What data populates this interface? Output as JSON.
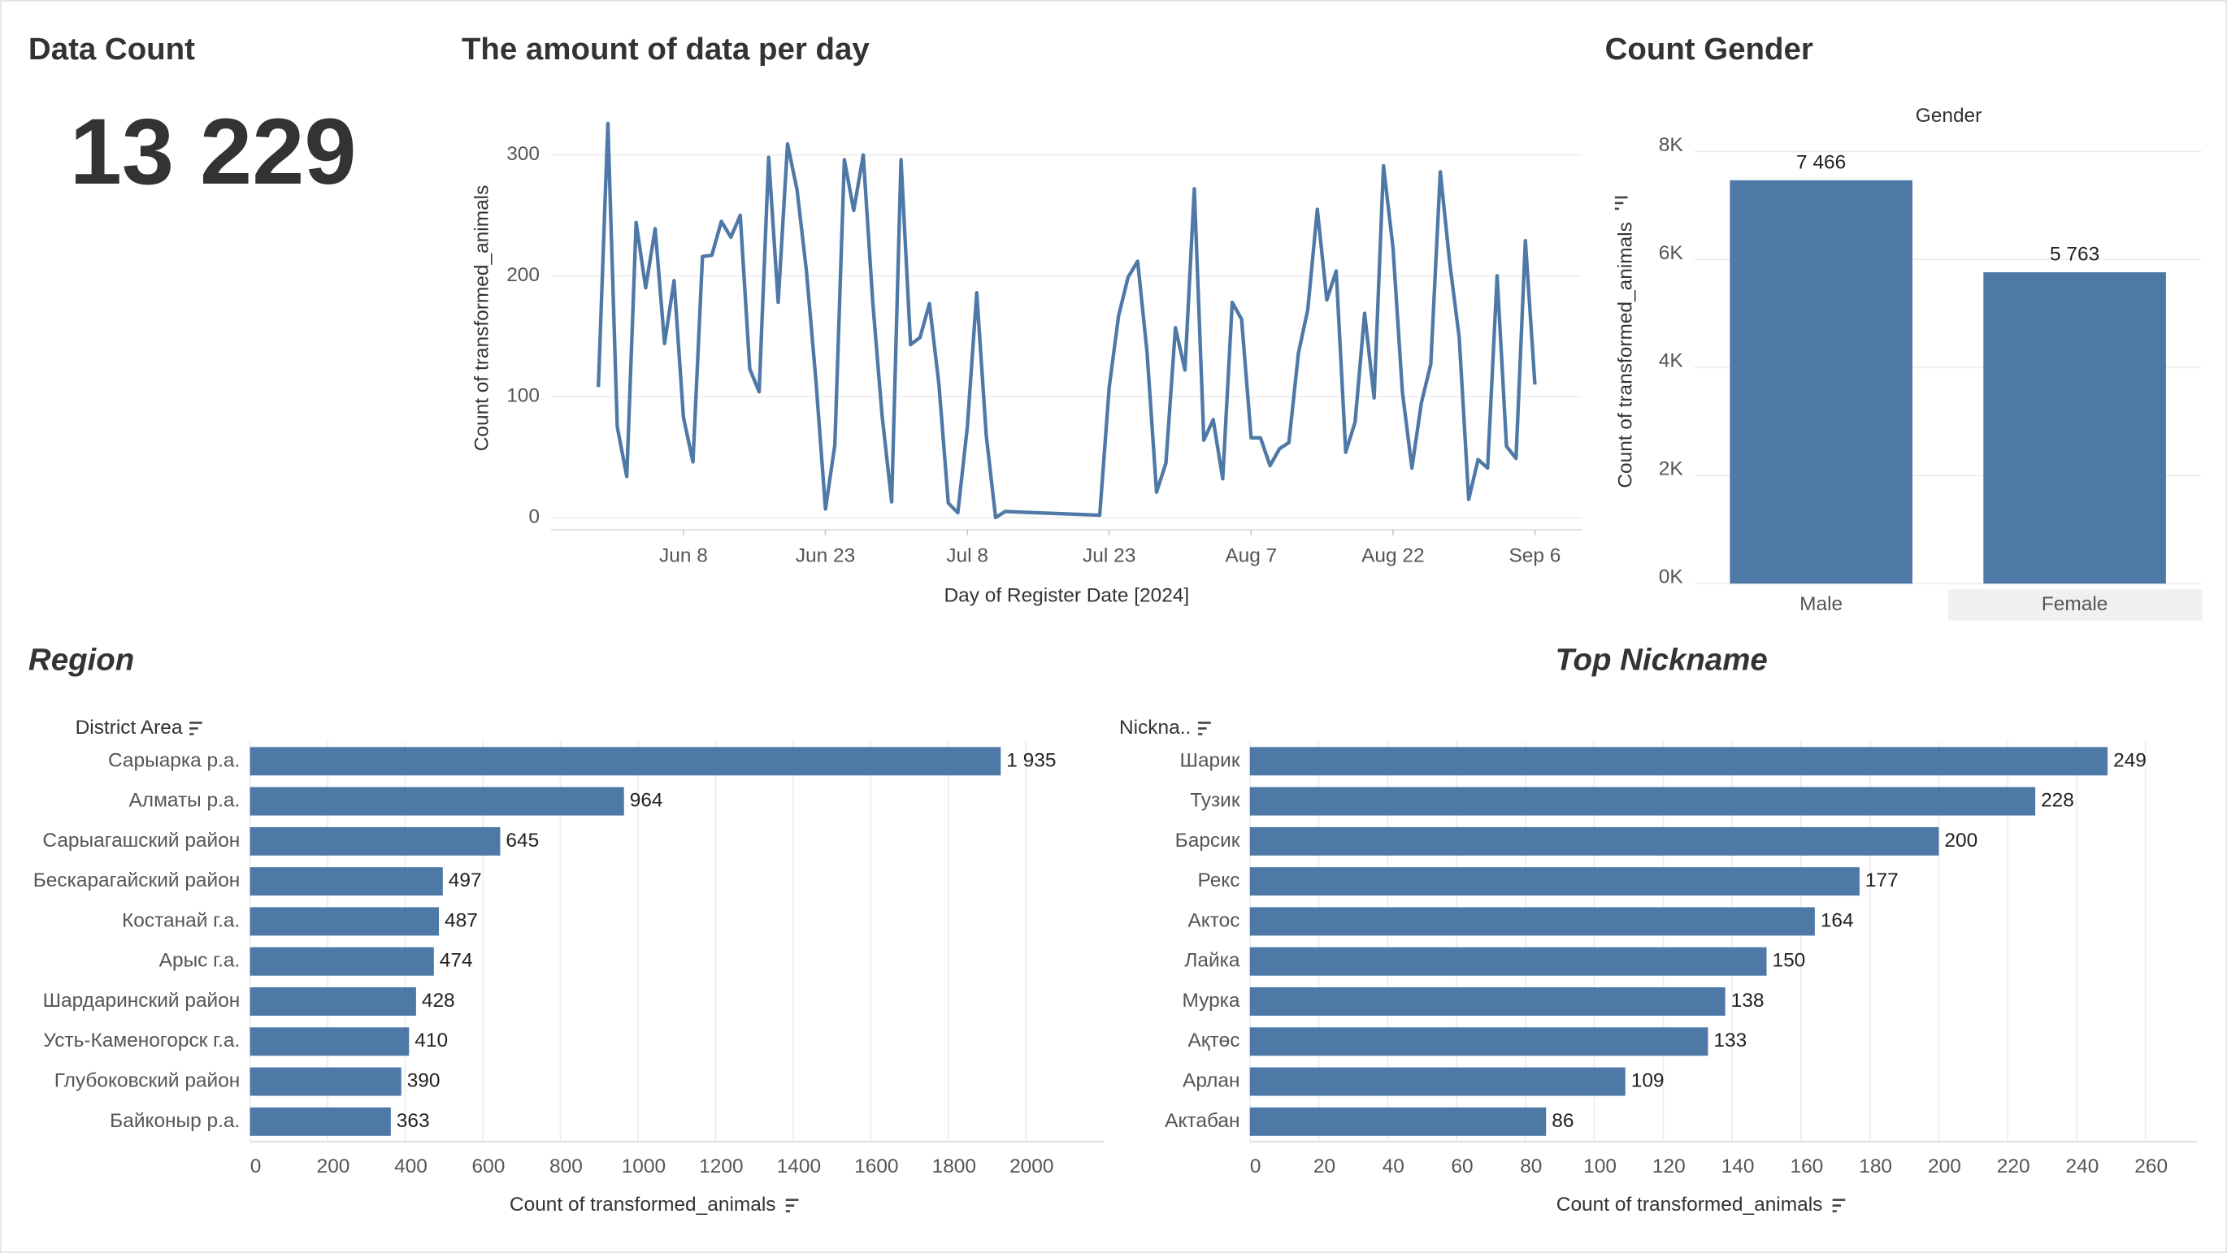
{
  "kpi": {
    "title": "Data Count",
    "value": "13 229"
  },
  "chart_data": [
    {
      "type": "line",
      "title": "The amount of data per day",
      "x_label": "Day of Register Date [2024]",
      "y_label": "Count of transformed_animals",
      "color": "#4e79a7",
      "x": [
        "2024-05-30",
        "2024-05-31",
        "2024-06-01",
        "2024-06-02",
        "2024-06-03",
        "2024-06-04",
        "2024-06-05",
        "2024-06-06",
        "2024-06-07",
        "2024-06-08",
        "2024-06-09",
        "2024-06-10",
        "2024-06-11",
        "2024-06-12",
        "2024-06-13",
        "2024-06-14",
        "2024-06-15",
        "2024-06-16",
        "2024-06-17",
        "2024-06-18",
        "2024-06-19",
        "2024-06-20",
        "2024-06-21",
        "2024-06-22",
        "2024-06-23",
        "2024-06-24",
        "2024-06-25",
        "2024-06-26",
        "2024-06-27",
        "2024-06-28",
        "2024-06-29",
        "2024-06-30",
        "2024-07-01",
        "2024-07-02",
        "2024-07-03",
        "2024-07-04",
        "2024-07-05",
        "2024-07-06",
        "2024-07-07",
        "2024-07-08",
        "2024-07-09",
        "2024-07-10",
        "2024-07-11",
        "2024-07-12",
        "2024-07-22",
        "2024-07-23",
        "2024-07-24",
        "2024-07-25",
        "2024-07-26",
        "2024-07-27",
        "2024-07-28",
        "2024-07-29",
        "2024-07-30",
        "2024-07-31",
        "2024-08-01",
        "2024-08-02",
        "2024-08-03",
        "2024-08-04",
        "2024-08-05",
        "2024-08-06",
        "2024-08-07",
        "2024-08-08",
        "2024-08-09",
        "2024-08-10",
        "2024-08-11",
        "2024-08-12",
        "2024-08-13",
        "2024-08-14",
        "2024-08-15",
        "2024-08-16",
        "2024-08-17",
        "2024-08-18",
        "2024-08-19",
        "2024-08-20",
        "2024-08-21",
        "2024-08-22",
        "2024-08-23",
        "2024-08-24",
        "2024-08-25",
        "2024-08-26",
        "2024-08-27",
        "2024-08-28",
        "2024-08-29",
        "2024-08-30",
        "2024-08-31",
        "2024-09-01",
        "2024-09-02",
        "2024-09-03",
        "2024-09-04",
        "2024-09-05",
        "2024-09-06"
      ],
      "values": [
        108,
        326,
        75,
        34,
        244,
        190,
        239,
        144,
        196,
        83,
        46,
        216,
        217,
        245,
        232,
        250,
        123,
        104,
        298,
        178,
        309,
        271,
        204,
        113,
        7,
        60,
        296,
        254,
        300,
        178,
        84,
        13,
        296,
        143,
        149,
        177,
        110,
        12,
        4,
        75,
        186,
        68,
        0,
        5,
        2,
        108,
        167,
        199,
        212,
        137,
        21,
        45,
        157,
        122,
        272,
        64,
        81,
        32,
        178,
        164,
        66,
        66,
        43,
        57,
        62,
        136,
        172,
        255,
        180,
        204,
        54,
        79,
        169,
        99,
        291,
        223,
        104,
        41,
        95,
        127,
        286,
        210,
        149,
        15,
        48,
        41,
        200,
        59,
        49,
        229,
        110
      ],
      "xlim": [
        "2024-05-25",
        "2024-09-11"
      ],
      "xticks": [
        {
          "value": "2024-06-08",
          "label": "Jun 8"
        },
        {
          "value": "2024-06-23",
          "label": "Jun 23"
        },
        {
          "value": "2024-07-08",
          "label": "Jul 8"
        },
        {
          "value": "2024-07-23",
          "label": "Jul 23"
        },
        {
          "value": "2024-08-07",
          "label": "Aug 7"
        },
        {
          "value": "2024-08-22",
          "label": "Aug 22"
        },
        {
          "value": "2024-09-06",
          "label": "Sep 6"
        }
      ],
      "ylim": [
        -10,
        340
      ],
      "yticks": [
        0,
        100,
        200,
        300
      ],
      "grid": true
    },
    {
      "type": "bar",
      "title": "Count Gender",
      "subtitle": "Gender",
      "y_label": "Count of transformed_animals",
      "color": "#4e79a7",
      "categories": [
        "Male",
        "Female"
      ],
      "values": [
        7466,
        5763
      ],
      "value_labels": [
        "7 466",
        "5 763"
      ],
      "ylim": [
        0,
        8200
      ],
      "yticks": [
        {
          "value": 0,
          "label": "0K"
        },
        {
          "value": 2000,
          "label": "2K"
        },
        {
          "value": 4000,
          "label": "4K"
        },
        {
          "value": 6000,
          "label": "6K"
        },
        {
          "value": 8000,
          "label": "8K"
        }
      ],
      "grid": true
    },
    {
      "type": "hbar",
      "title": "Region",
      "y_label": "District Area",
      "x_label": "Count of transformed_animals",
      "color": "#4e79a7",
      "categories": [
        "Сарыарка р.а.",
        "Алматы р.а.",
        "Сарыагашский район",
        "Бескарагайский район",
        "Костанай г.а.",
        "Арыс г.а.",
        "Шардаринский район",
        "Усть-Каменогорск г.а.",
        "Глубоковский район",
        "Байконыр р.а."
      ],
      "values": [
        1935,
        964,
        645,
        497,
        487,
        474,
        428,
        410,
        390,
        363
      ],
      "value_labels": [
        "1 935",
        "964",
        "645",
        "497",
        "487",
        "474",
        "428",
        "410",
        "390",
        "363"
      ],
      "xlim": [
        0,
        2200
      ],
      "xticks": [
        0,
        200,
        400,
        600,
        800,
        1000,
        1200,
        1400,
        1600,
        1800,
        2000
      ],
      "grid": true
    },
    {
      "type": "hbar",
      "title": "Top Nickname",
      "y_label": "Nickna..",
      "x_label": "Count of transformed_animals",
      "color": "#4e79a7",
      "categories": [
        "Шарик",
        "Тузик",
        "Барсик",
        "Рекс",
        "Актос",
        "Лайка",
        "Мурка",
        "Ақтөс",
        "Арлан",
        "Актабан"
      ],
      "values": [
        249,
        228,
        200,
        177,
        164,
        150,
        138,
        133,
        109,
        86
      ],
      "xlim": [
        0,
        275
      ],
      "xticks": [
        0,
        20,
        40,
        60,
        80,
        100,
        120,
        140,
        160,
        180,
        200,
        220,
        240,
        260
      ],
      "grid": true
    }
  ]
}
